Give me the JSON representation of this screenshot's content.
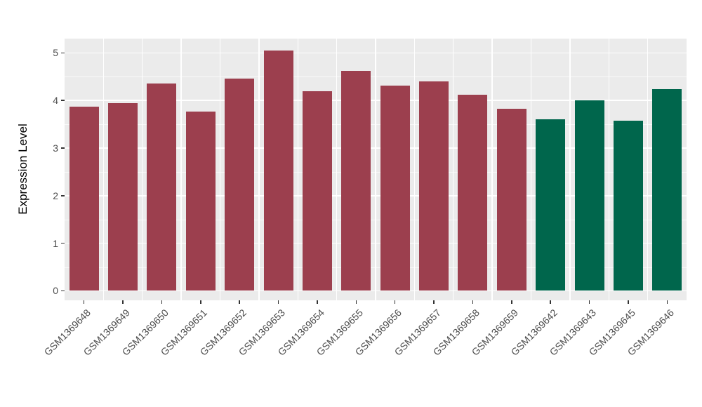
{
  "chart_data": {
    "type": "bar",
    "title": "",
    "xlabel": "",
    "ylabel": "Expression Level",
    "legend": "none",
    "grid": "on",
    "panel_background": "#EBEBEB",
    "grid_color": "#FFFFFF",
    "tick_label_color": "#4D4D4D",
    "axis_title_color": "#000000",
    "ylim": [
      -0.2,
      5.3
    ],
    "yticks": [
      0,
      1,
      2,
      3,
      4,
      5
    ],
    "yticks_minor": [
      0.5,
      1.5,
      2.5,
      3.5,
      4.5
    ],
    "categories": [
      "GSM1369648",
      "GSM1369649",
      "GSM1369650",
      "GSM1369651",
      "GSM1369652",
      "GSM1369653",
      "GSM1369654",
      "GSM1369655",
      "GSM1369656",
      "GSM1369657",
      "GSM1369658",
      "GSM1369659",
      "GSM1369642",
      "GSM1369643",
      "GSM1369645",
      "GSM1369646"
    ],
    "values": [
      3.87,
      3.95,
      4.36,
      3.76,
      4.46,
      5.05,
      4.2,
      4.62,
      4.31,
      4.4,
      4.12,
      3.83,
      3.61,
      4.0,
      3.57,
      4.24
    ],
    "colors": [
      "#9C3F4E",
      "#9C3F4E",
      "#9C3F4E",
      "#9C3F4E",
      "#9C3F4E",
      "#9C3F4E",
      "#9C3F4E",
      "#9C3F4E",
      "#9C3F4E",
      "#9C3F4E",
      "#9C3F4E",
      "#9C3F4E",
      "#00664C",
      "#00664C",
      "#00664C",
      "#00664C"
    ],
    "group_colors": {
      "first_group": "#9C3F4E",
      "second_group": "#00664C"
    }
  }
}
